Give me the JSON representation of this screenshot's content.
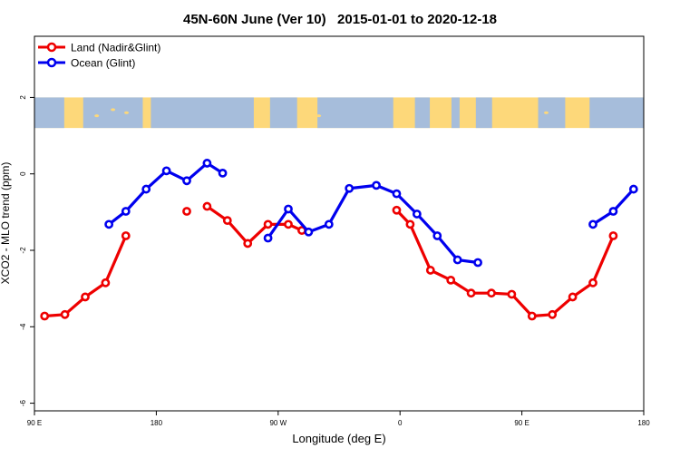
{
  "chart_data": {
    "type": "line",
    "title": "45N-60N June (Ver 10)   2015-01-01 to 2020-12-18",
    "xlabel": "Longitude (deg E)",
    "ylabel": "XCO2 - MLO trend (ppm)",
    "xlim": [
      90,
      540
    ],
    "ylim": [
      -6.2,
      3.6
    ],
    "x_ticks": [
      {
        "value": 90,
        "label": "90 E"
      },
      {
        "value": 180,
        "label": "180"
      },
      {
        "value": 270,
        "label": "90 W"
      },
      {
        "value": 360,
        "label": "0"
      },
      {
        "value": 450,
        "label": "90 E"
      },
      {
        "value": 540,
        "label": "180"
      }
    ],
    "y_ticks": [
      {
        "value": -6,
        "label": "-6"
      },
      {
        "value": -4,
        "label": "-4"
      },
      {
        "value": -2,
        "label": "-2"
      },
      {
        "value": 0,
        "label": "0"
      },
      {
        "value": 2,
        "label": "2"
      }
    ],
    "map_band": {
      "y_from": 1.2,
      "y_to": 2.0,
      "ocean_color": "#a6bddb",
      "land_color": "#fdd87a"
    },
    "legend": {
      "position": "top-left"
    },
    "series": [
      {
        "name": "Land (Nadir&Glint)",
        "color": "#ee0000",
        "segments": [
          [
            [
              97.5,
              -3.72
            ],
            [
              112.5,
              -3.68
            ],
            [
              127.5,
              -3.22
            ],
            [
              142.5,
              -2.85
            ],
            [
              157.5,
              -1.62
            ]
          ],
          [
            [
              202.5,
              -0.98
            ]
          ],
          [
            [
              217.5,
              -0.85
            ],
            [
              232.5,
              -1.22
            ],
            [
              247.5,
              -1.82
            ],
            [
              262.5,
              -1.32
            ],
            [
              277.5,
              -1.32
            ],
            [
              287.5,
              -1.48
            ]
          ],
          [
            [
              357.5,
              -0.95
            ],
            [
              367.5,
              -1.32
            ],
            [
              382.5,
              -2.52
            ],
            [
              397.5,
              -2.78
            ],
            [
              412.5,
              -3.12
            ],
            [
              427.5,
              -3.12
            ],
            [
              442.5,
              -3.15
            ],
            [
              457.5,
              -3.72
            ],
            [
              472.5,
              -3.68
            ],
            [
              487.5,
              -3.22
            ],
            [
              502.5,
              -2.85
            ],
            [
              517.5,
              -1.62
            ]
          ]
        ]
      },
      {
        "name": "Ocean (Glint)",
        "color": "#0000ee",
        "segments": [
          [
            [
              145,
              -1.32
            ],
            [
              157.5,
              -0.98
            ],
            [
              172.5,
              -0.4
            ],
            [
              187.5,
              0.08
            ],
            [
              202.5,
              -0.18
            ],
            [
              217.5,
              0.28
            ],
            [
              229,
              0.02
            ]
          ],
          [
            [
              262.5,
              -1.68
            ],
            [
              277.5,
              -0.92
            ],
            [
              292.5,
              -1.52
            ],
            [
              307.5,
              -1.32
            ],
            [
              322.5,
              -0.38
            ],
            [
              342.5,
              -0.3
            ],
            [
              357.5,
              -0.52
            ],
            [
              372.5,
              -1.05
            ],
            [
              387.5,
              -1.62
            ],
            [
              402.5,
              -2.25
            ],
            [
              417.5,
              -2.32
            ]
          ]
        ],
        "extra_segments": [
          [
            [
              502.5,
              -1.32
            ],
            [
              517.5,
              -0.98
            ],
            [
              532.5,
              -0.4
            ]
          ]
        ]
      }
    ]
  }
}
